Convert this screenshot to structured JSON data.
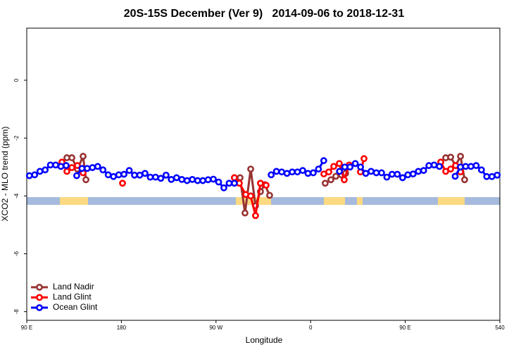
{
  "chart_data": {
    "type": "line",
    "title": "20S-15S December (Ver 9)   2014-09-06 to 2018-12-31",
    "xlabel": "Longitude",
    "ylabel": "XCO2 - MLO trend (ppm)",
    "xlim": [
      90,
      540
    ],
    "ylim": [
      -8.3,
      1.8
    ],
    "xticks": [
      {
        "value": 90,
        "label": "90 E"
      },
      180,
      {
        "value": 270,
        "label": "90 W"
      },
      {
        "value": 360,
        "label": "0"
      },
      {
        "value": 450,
        "label": "90 E"
      },
      540
    ],
    "yticks": [
      0,
      -2,
      -4,
      -6,
      -8
    ],
    "legend": "bottom-left",
    "series": [
      {
        "name": "Land Nadir",
        "color": "#983232",
        "x": [
          123.5,
          128.2,
          132.9,
          138.2,
          143.6,
          146.3,
          null,
          287.5,
          292.9,
          297.6,
          303.0,
          307.6,
          312.3,
          316.4,
          321.0,
          null,
          373.9,
          379.3,
          384.0,
          389.3,
          393.3,
          396.7,
          null,
          483.8,
          488.5,
          493.2,
          497.9,
          502.6,
          506.5
        ],
        "values": [
          -2.83,
          -2.68,
          -2.68,
          -3.07,
          -2.63,
          -3.44,
          null,
          -3.37,
          -3.37,
          -4.59,
          -3.07,
          -4.34,
          -3.85,
          -3.61,
          -3.98,
          null,
          -3.56,
          -3.44,
          -3.32,
          -3.27,
          -3.22,
          -2.95,
          null,
          -2.83,
          -2.68,
          -2.66,
          -2.95,
          -2.63,
          -3.44
        ]
      },
      {
        "name": "Land Glint",
        "color": "#ff0000",
        "x": [
          123.5,
          128.2,
          132.9,
          138.2,
          143.6,
          null,
          181.1,
          null,
          287.5,
          292.2,
          298.3,
          303.0,
          307.6,
          312.3,
          317.7,
          null,
          372.6,
          377.3,
          382.0,
          387.3,
          392.0,
          396.7,
          null,
          407.4,
          410.8,
          null,
          483.8,
          488.5,
          493.2,
          497.9,
          502.6
        ],
        "values": [
          -2.83,
          -3.15,
          -3.02,
          -2.95,
          -3.2,
          null,
          -3.56,
          null,
          -3.37,
          -3.56,
          -3.95,
          -4.0,
          -4.68,
          -3.56,
          -3.63,
          null,
          -3.24,
          -3.17,
          -2.98,
          -2.88,
          -3.44,
          -2.93,
          null,
          -3.17,
          -2.71,
          null,
          -2.83,
          -3.15,
          -3.07,
          -2.95,
          -3.17
        ]
      },
      {
        "name": "Ocean Glint",
        "color": "#0000ff",
        "x": [
          92.5,
          97.5,
          102.5,
          107.5,
          112.5,
          117.5,
          122.5,
          127.5,
          132.5,
          137.5,
          142.5,
          147.5,
          152.5,
          157.5,
          162.5,
          167.5,
          172.5,
          177.5,
          182.5,
          187.5,
          192.5,
          197.5,
          202.5,
          207.5,
          212.5,
          217.5,
          222.5,
          227.5,
          232.5,
          237.5,
          242.5,
          247.5,
          252.5,
          257.5,
          262.5,
          267.5,
          272.5,
          277.5,
          282.5,
          287.5,
          292.5,
          297.5,
          302.5,
          307.5,
          312.5,
          317.5,
          322.5,
          327.5,
          332.5,
          337.5,
          342.5,
          347.5,
          352.5,
          357.5,
          362.5,
          367.5,
          372.5,
          377.5,
          382.5,
          387.5,
          392.5,
          397.5,
          402.5,
          407.5,
          412.5,
          417.5,
          422.5,
          427.5,
          432.5,
          437.5,
          442.5,
          447.5,
          452.5,
          457.5,
          462.5,
          467.5,
          472.5,
          477.5,
          482.5,
          487.5,
          492.5,
          497.5,
          502.5,
          507.5,
          512.5,
          517.5,
          522.5,
          527.5,
          532.5,
          537.5
        ],
        "values": [
          -3.3,
          -3.27,
          -3.15,
          -3.1,
          -2.93,
          -2.93,
          -2.98,
          -2.95,
          null,
          -3.3,
          -3.05,
          -3.05,
          -3.02,
          -2.98,
          -3.1,
          -3.27,
          -3.33,
          -3.27,
          -3.25,
          -3.12,
          -3.28,
          -3.28,
          -3.22,
          -3.35,
          -3.35,
          -3.39,
          -3.28,
          -3.43,
          -3.37,
          -3.43,
          -3.47,
          -3.43,
          -3.47,
          -3.47,
          -3.44,
          -3.42,
          -3.52,
          -3.72,
          -3.56,
          -3.56,
          null,
          null,
          null,
          null,
          null,
          null,
          -3.27,
          -3.15,
          -3.17,
          -3.22,
          -3.17,
          -3.17,
          -3.12,
          -3.22,
          -3.2,
          -3.07,
          -2.78,
          null,
          null,
          -3.15,
          -3.0,
          -3.0,
          -2.88,
          -3.0,
          -3.22,
          -3.15,
          -3.2,
          -3.2,
          -3.35,
          -3.25,
          -3.25,
          -3.37,
          -3.27,
          -3.24,
          -3.15,
          -3.12,
          -2.95,
          -2.93,
          -2.98,
          null,
          null,
          -3.32,
          -3.0,
          -2.98,
          -2.98,
          -2.95,
          -3.1,
          -3.33,
          -3.33,
          -3.28
        ]
      }
    ]
  }
}
